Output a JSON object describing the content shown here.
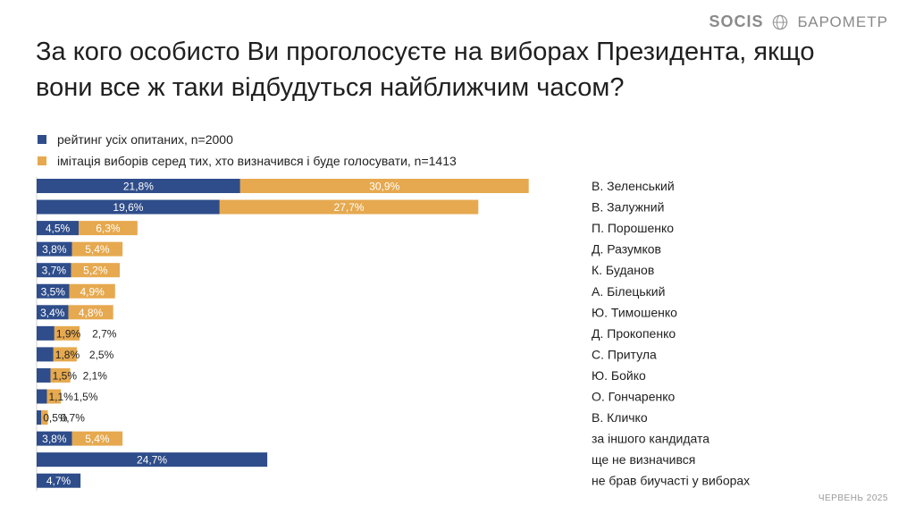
{
  "brand": {
    "logo_text": "SOCIS",
    "right_text": "БАРОМЕТР"
  },
  "title": "За кого особисто Ви проголосуєте на виборах Президента, якщо вони все ж таки відбудуться найближчим часом?",
  "colors": {
    "series_a": "#2e4d8a",
    "series_b": "#e6a94f"
  },
  "footer": "ЧЕРВЕНЬ 2025",
  "chart_data": {
    "type": "bar",
    "orientation": "horizontal",
    "stacked": true,
    "categories": [
      "В. Зеленський",
      "В. Залужний",
      "П. Порошенко",
      "Д. Разумков",
      "К. Буданов",
      "А. Білецький",
      "Ю. Тимошенко",
      "Д. Прокопенко",
      "С. Притула",
      "Ю. Бойко",
      "О. Гончаренко",
      "В. Кличко",
      "за іншого кандидата",
      "ще не визначився",
      "не брав биучасті у виборах"
    ],
    "series": [
      {
        "name": "рейтинг усіх опитаних, n=2000",
        "values": [
          21.8,
          19.6,
          4.5,
          3.8,
          3.7,
          3.5,
          3.4,
          1.9,
          1.8,
          1.5,
          1.1,
          0.5,
          3.8,
          24.7,
          4.7
        ],
        "labels": [
          "21,8%",
          "19,6%",
          "4,5%",
          "3,8%",
          "3,7%",
          "3,5%",
          "3,4%",
          "1,9%",
          "1,8%",
          "1,5%",
          "1,1%",
          "0,5%",
          "3,8%",
          "24,7%",
          "4,7%"
        ]
      },
      {
        "name": "імітація виборів серед тих, хто визначився і буде голосувати, n=1413",
        "values": [
          30.9,
          27.7,
          6.3,
          5.4,
          5.2,
          4.9,
          4.8,
          2.7,
          2.5,
          2.1,
          1.5,
          0.7,
          5.4,
          null,
          null
        ],
        "labels": [
          "30,9%",
          "27,7%",
          "6,3%",
          "5,4%",
          "5,2%",
          "4,9%",
          "4,8%",
          "2,7%",
          "2,5%",
          "2,1%",
          "1,5%",
          "0,7%",
          "5,4%",
          "",
          ""
        ]
      }
    ],
    "legend": "top-left",
    "grid": false
  }
}
